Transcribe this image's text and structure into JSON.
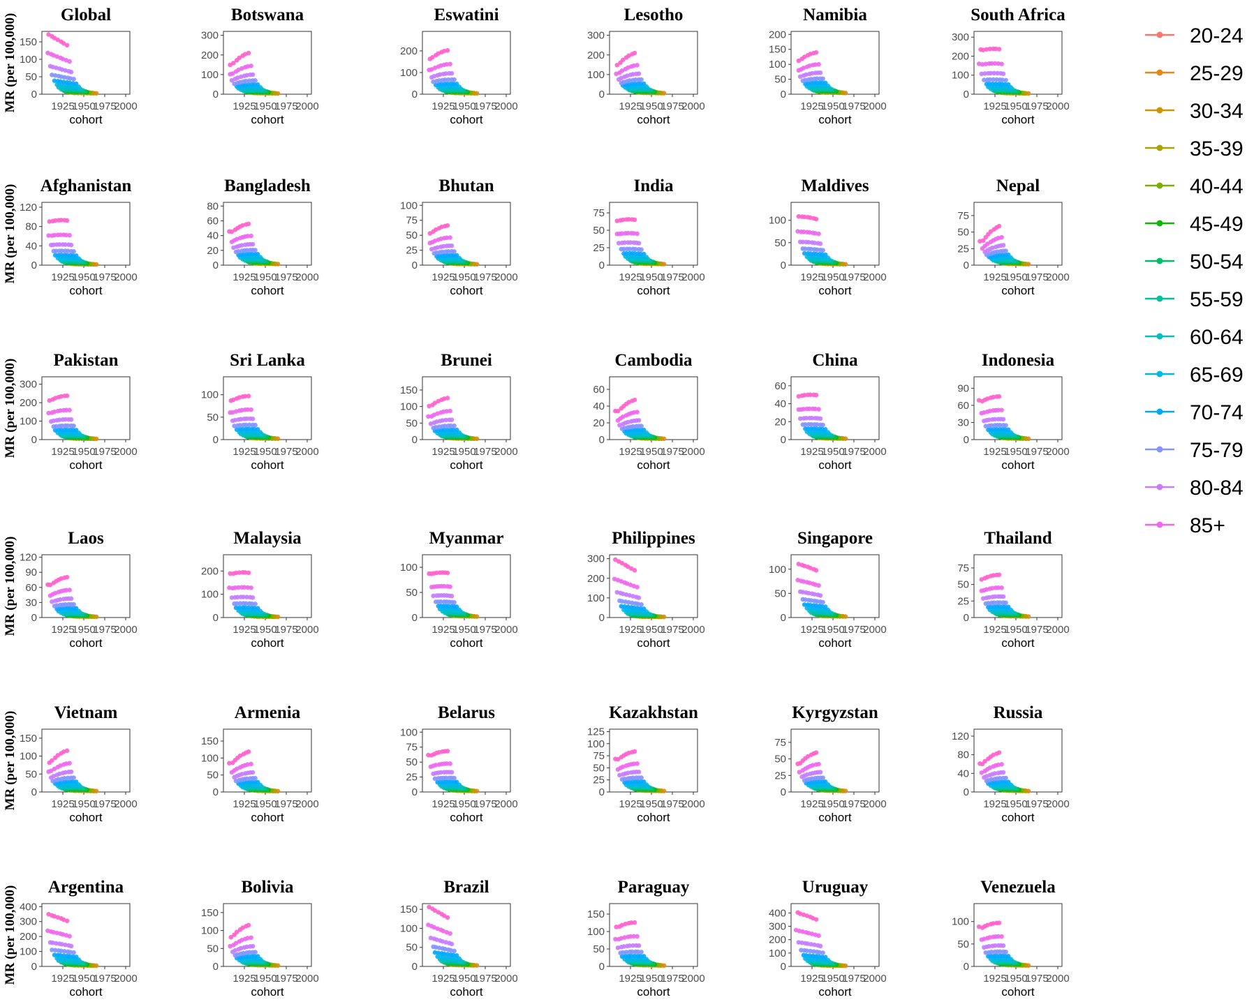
{
  "chart_data": {
    "type": "scatter",
    "subtype": "small-multiples",
    "mode": "lines+markers",
    "xlabel": "cohort",
    "ylabel": "MR (per 100,000)",
    "x_ticks": [
      1925,
      1950,
      1975,
      2000
    ],
    "xlim": [
      1900,
      2005
    ],
    "legend_position": "right",
    "age_groups": [
      "20-24",
      "25-29",
      "30-34",
      "35-39",
      "40-44",
      "45-49",
      "50-54",
      "55-59",
      "60-64",
      "65-69",
      "70-74",
      "75-79",
      "80-84",
      "85+"
    ],
    "colors": [
      "#F8766D",
      "#E68613",
      "#CD9600",
      "#ABA300",
      "#7CAE00",
      "#0CB702",
      "#00BE67",
      "#00C19A",
      "#00BFC4",
      "#00B8E7",
      "#00A9FF",
      "#8494FF",
      "#C77CFF",
      "#ED68ED",
      "#FF61CC"
    ],
    "panels": [
      {
        "title": "Global",
        "ylim": [
          0,
          180
        ],
        "yticks": [
          0,
          50,
          100,
          150
        ],
        "peak_young": 5,
        "peak_old": 175,
        "rise": 0.0,
        "spread": 1.4
      },
      {
        "title": "Botswana",
        "ylim": [
          0,
          320
        ],
        "yticks": [
          0,
          100,
          200,
          300
        ],
        "peak_young": 8,
        "peak_old": 310,
        "rise": 0.6,
        "spread": 1.2
      },
      {
        "title": "Eswatini",
        "ylim": [
          0,
          290
        ],
        "yticks": [
          0,
          100,
          200
        ],
        "peak_young": 8,
        "peak_old": 290,
        "rise": 0.5,
        "spread": 1.1
      },
      {
        "title": "Lesotho",
        "ylim": [
          0,
          320
        ],
        "yticks": [
          0,
          100,
          200,
          300
        ],
        "peak_young": 10,
        "peak_old": 310,
        "rise": 0.6,
        "spread": 1.0
      },
      {
        "title": "Namibia",
        "ylim": [
          0,
          210
        ],
        "yticks": [
          0,
          50,
          100,
          150,
          200
        ],
        "peak_young": 8,
        "peak_old": 200,
        "rise": 0.5,
        "spread": 0.9
      },
      {
        "title": "South Africa",
        "ylim": [
          0,
          330
        ],
        "yticks": [
          0,
          100,
          200,
          300
        ],
        "peak_young": 8,
        "peak_old": 320,
        "rise": 0.3,
        "spread": 1.5
      },
      {
        "title": "Afghanistan",
        "ylim": [
          0,
          130
        ],
        "yticks": [
          0,
          40,
          80,
          120
        ],
        "peak_young": 3,
        "peak_old": 125,
        "rise": 0.3,
        "spread": 1.0
      },
      {
        "title": "Bangladesh",
        "ylim": [
          0,
          85
        ],
        "yticks": [
          0,
          20,
          40,
          60,
          80
        ],
        "peak_young": 3,
        "peak_old": 80,
        "rise": 0.5,
        "spread": 0.6
      },
      {
        "title": "Bhutan",
        "ylim": [
          0,
          105
        ],
        "yticks": [
          0,
          25,
          50,
          75,
          100
        ],
        "peak_young": 3,
        "peak_old": 95,
        "rise": 0.5,
        "spread": 0.9
      },
      {
        "title": "India",
        "ylim": [
          0,
          90
        ],
        "yticks": [
          0,
          25,
          50,
          75
        ],
        "peak_young": 3,
        "peak_old": 88,
        "rise": 0.3,
        "spread": 0.9
      },
      {
        "title": "Maldives",
        "ylim": [
          0,
          140
        ],
        "yticks": [
          0,
          50,
          100
        ],
        "peak_young": 4,
        "peak_old": 135,
        "rise": 0.2,
        "spread": 1.0
      },
      {
        "title": "Nepal",
        "ylim": [
          0,
          95
        ],
        "yticks": [
          0,
          25,
          50,
          75
        ],
        "peak_young": 3,
        "peak_old": 90,
        "rise": 0.7,
        "spread": 0.5
      },
      {
        "title": "Pakistan",
        "ylim": [
          0,
          340
        ],
        "yticks": [
          0,
          100,
          200,
          300
        ],
        "peak_young": 8,
        "peak_old": 330,
        "rise": 0.4,
        "spread": 1.0
      },
      {
        "title": "Sri Lanka",
        "ylim": [
          0,
          140
        ],
        "yticks": [
          0,
          50,
          100
        ],
        "peak_young": 4,
        "peak_old": 135,
        "rise": 0.4,
        "spread": 1.1
      },
      {
        "title": "Brunei",
        "ylim": [
          0,
          190
        ],
        "yticks": [
          0,
          50,
          100,
          150
        ],
        "peak_young": 5,
        "peak_old": 180,
        "rise": 0.5,
        "spread": 1.3
      },
      {
        "title": "Cambodia",
        "ylim": [
          0,
          75
        ],
        "yticks": [
          0,
          20,
          40,
          60
        ],
        "peak_young": 2,
        "peak_old": 70,
        "rise": 0.6,
        "spread": 0.6
      },
      {
        "title": "China",
        "ylim": [
          0,
          70
        ],
        "yticks": [
          0,
          20,
          40,
          60
        ],
        "peak_young": 2,
        "peak_old": 67,
        "rise": 0.3,
        "spread": 0.9
      },
      {
        "title": "Indonesia",
        "ylim": [
          0,
          110
        ],
        "yticks": [
          0,
          30,
          60,
          90
        ],
        "peak_young": 3,
        "peak_old": 105,
        "rise": 0.4,
        "spread": 0.8
      },
      {
        "title": "Laos",
        "ylim": [
          0,
          125
        ],
        "yticks": [
          0,
          30,
          60,
          90,
          120
        ],
        "peak_young": 3,
        "peak_old": 115,
        "rise": 0.5,
        "spread": 0.6
      },
      {
        "title": "Malaysia",
        "ylim": [
          0,
          270
        ],
        "yticks": [
          0,
          100,
          200
        ],
        "peak_young": 6,
        "peak_old": 260,
        "rise": 0.3,
        "spread": 1.3
      },
      {
        "title": "Myanmar",
        "ylim": [
          0,
          125
        ],
        "yticks": [
          0,
          50,
          100
        ],
        "peak_young": 4,
        "peak_old": 120,
        "rise": 0.3,
        "spread": 0.3
      },
      {
        "title": "Philippines",
        "ylim": [
          0,
          320
        ],
        "yticks": [
          0,
          100,
          200,
          300
        ],
        "peak_young": 6,
        "peak_old": 300,
        "rise": 0.0,
        "spread": 1.6
      },
      {
        "title": "Singapore",
        "ylim": [
          0,
          130
        ],
        "yticks": [
          0,
          50,
          100
        ],
        "peak_young": 4,
        "peak_old": 125,
        "rise": 0.1,
        "spread": 1.0
      },
      {
        "title": "Thailand",
        "ylim": [
          0,
          95
        ],
        "yticks": [
          0,
          25,
          50,
          75
        ],
        "peak_young": 3,
        "peak_old": 90,
        "rise": 0.4,
        "spread": 0.9
      },
      {
        "title": "Vietnam",
        "ylim": [
          0,
          175
        ],
        "yticks": [
          0,
          50,
          100,
          150
        ],
        "peak_young": 5,
        "peak_old": 170,
        "rise": 0.6,
        "spread": 1.1
      },
      {
        "title": "Armenia",
        "ylim": [
          0,
          185
        ],
        "yticks": [
          0,
          50,
          100,
          150
        ],
        "peak_young": 5,
        "peak_old": 175,
        "rise": 0.6,
        "spread": 0.5
      },
      {
        "title": "Belarus",
        "ylim": [
          0,
          105
        ],
        "yticks": [
          0,
          25,
          50,
          75,
          100
        ],
        "peak_young": 3,
        "peak_old": 95,
        "rise": 0.4,
        "spread": 0.5
      },
      {
        "title": "Kazakhstan",
        "ylim": [
          0,
          130
        ],
        "yticks": [
          0,
          25,
          50,
          75,
          100,
          125
        ],
        "peak_young": 4,
        "peak_old": 120,
        "rise": 0.5,
        "spread": 0.6
      },
      {
        "title": "Kyrgyzstan",
        "ylim": [
          0,
          95
        ],
        "yticks": [
          0,
          25,
          50,
          75
        ],
        "peak_young": 3,
        "peak_old": 88,
        "rise": 0.6,
        "spread": 0.4
      },
      {
        "title": "Russia",
        "ylim": [
          0,
          135
        ],
        "yticks": [
          0,
          40,
          80,
          120
        ],
        "peak_young": 4,
        "peak_old": 125,
        "rise": 0.6,
        "spread": 0.7
      },
      {
        "title": "Argentina",
        "ylim": [
          0,
          420
        ],
        "yticks": [
          0,
          100,
          200,
          300,
          400
        ],
        "peak_young": 10,
        "peak_old": 390,
        "rise": 0.1,
        "spread": 1.4
      },
      {
        "title": "Bolivia",
        "ylim": [
          0,
          175
        ],
        "yticks": [
          0,
          50,
          100,
          150
        ],
        "peak_young": 5,
        "peak_old": 170,
        "rise": 0.6,
        "spread": 1.0
      },
      {
        "title": "Brazil",
        "ylim": [
          0,
          165
        ],
        "yticks": [
          0,
          50,
          100,
          150
        ],
        "peak_young": 5,
        "peak_old": 160,
        "rise": 0.0,
        "spread": 1.3
      },
      {
        "title": "Paraguay",
        "ylim": [
          0,
          180
        ],
        "yticks": [
          0,
          50,
          100,
          150
        ],
        "peak_young": 5,
        "peak_old": 175,
        "rise": 0.4,
        "spread": 1.3
      },
      {
        "title": "Uruguay",
        "ylim": [
          0,
          470
        ],
        "yticks": [
          0,
          100,
          200,
          300,
          400
        ],
        "peak_young": 10,
        "peak_old": 450,
        "rise": 0.1,
        "spread": 1.5
      },
      {
        "title": "Venezuela",
        "ylim": [
          0,
          140
        ],
        "yticks": [
          0,
          50,
          100
        ],
        "peak_young": 4,
        "peak_old": 135,
        "rise": 0.4,
        "spread": 0.8
      }
    ]
  }
}
